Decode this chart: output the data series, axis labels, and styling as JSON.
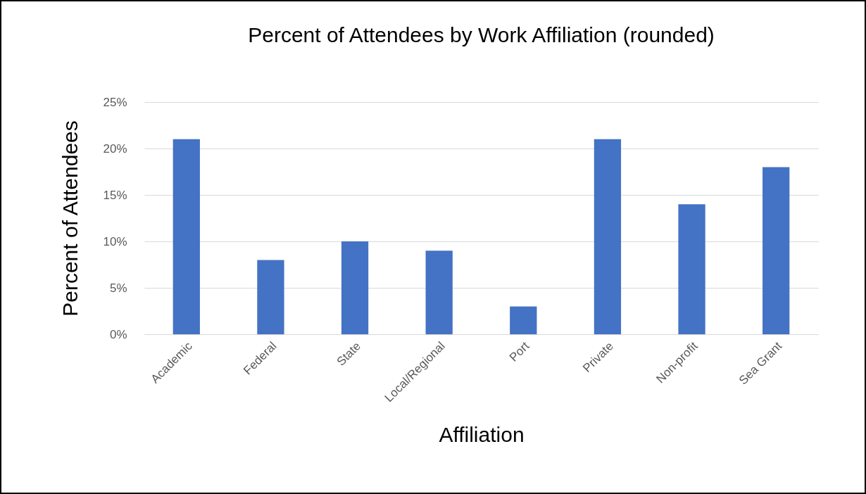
{
  "chart_data": {
    "type": "bar",
    "title": "Percent of Attendees by Work Affiliation (rounded)",
    "xlabel": "Affiliation",
    "ylabel": "Percent of Attendees",
    "categories": [
      "Academic",
      "Federal",
      "State",
      "Local/Regional",
      "Port",
      "Private",
      "Non-profit",
      "Sea Grant"
    ],
    "values": [
      21,
      8,
      10,
      9,
      3,
      21,
      14,
      18
    ],
    "color": "#4472c4",
    "ylim": [
      0,
      25
    ],
    "yticks": [
      {
        "value": 0,
        "label": "0%"
      },
      {
        "value": 5,
        "label": "5%"
      },
      {
        "value": 10,
        "label": "10%"
      },
      {
        "value": 15,
        "label": "15%"
      },
      {
        "value": 20,
        "label": "20%"
      },
      {
        "value": 25,
        "label": "25%"
      }
    ],
    "grid": "y"
  }
}
